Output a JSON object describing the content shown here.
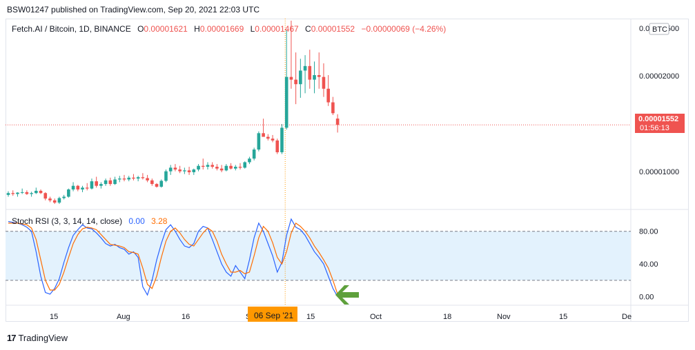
{
  "header": {
    "published_line": "BSW01247 published on TradingView.com, Sep 20, 2021 22:03 UTC"
  },
  "legend": {
    "symbol": "Fetch.AI / Bitcoin, 1D, BINANCE",
    "open_label": "O",
    "open": "0.00001621",
    "high_label": "H",
    "high": "0.00001669",
    "low_label": "L",
    "low": "0.00001467",
    "close_label": "C",
    "close": "0.00001552",
    "change": "−0.00000069 (−4.26%)"
  },
  "price_axis": {
    "currency_badge": "BTC",
    "ticks": [
      "0.00002500",
      "0.00002000",
      "0.00001000"
    ],
    "last_price": "0.00001552",
    "countdown": "01:56:13"
  },
  "rsi": {
    "title": "Stoch RSI (3, 3, 14, 14, close)",
    "k_value": "0.00",
    "d_value": "3.28",
    "ticks": [
      "80.00",
      "40.00",
      "0.00"
    ]
  },
  "time_axis": {
    "labels": [
      "15",
      "Aug",
      "16",
      "S",
      "15",
      "Oct",
      "18",
      "Nov",
      "15",
      "De"
    ],
    "crosshair_label": "06 Sep '21"
  },
  "footer": {
    "brand": "TradingView"
  },
  "colors": {
    "up": "#26a69a",
    "down": "#ef5350",
    "k_line": "#2962ff",
    "d_line": "#ff6d00",
    "band_fill": "#e3f2fd",
    "crosshair_label_bg": "#ff9800",
    "arrow": "#5ea03c"
  },
  "chart_data": [
    {
      "type": "candlestick",
      "title": "Fetch.AI / Bitcoin, 1D, BINANCE",
      "ylim": [
        6.5e-06,
        2.7e-05
      ],
      "x_start": "2021-07-08",
      "x_end": "2021-09-20",
      "candles": [
        [
          7.8e-06,
          8.2e-06,
          7.6e-06,
          8e-06
        ],
        [
          8e-06,
          8.3e-06,
          7.7e-06,
          7.9e-06
        ],
        [
          7.9e-06,
          8.1e-06,
          7.6e-06,
          8.05e-06
        ],
        [
          8.05e-06,
          8.5e-06,
          7.9e-06,
          8.1e-06
        ],
        [
          8.1e-06,
          8.3e-06,
          7.8e-06,
          7.9e-06
        ],
        [
          7.9e-06,
          8.15e-06,
          7.6e-06,
          8e-06
        ],
        [
          8e-06,
          8.6e-06,
          7.9e-06,
          8.25e-06
        ],
        [
          8.25e-06,
          8.4e-06,
          7.9e-06,
          8e-06
        ],
        [
          8e-06,
          8.1e-06,
          7.2e-06,
          7.4e-06
        ],
        [
          7.4e-06,
          7.6e-06,
          7e-06,
          7.2e-06
        ],
        [
          7.2e-06,
          7.4e-06,
          6.8e-06,
          6.95e-06
        ],
        [
          6.95e-06,
          7.6e-06,
          6.8e-06,
          7.45e-06
        ],
        [
          7.45e-06,
          7.8e-06,
          7.3e-06,
          7.6e-06
        ],
        [
          7.6e-06,
          8.5e-06,
          7.5e-06,
          8.4e-06
        ],
        [
          8.4e-06,
          9.2e-06,
          8.2e-06,
          8.8e-06
        ],
        [
          8.8e-06,
          8.9e-06,
          8.2e-06,
          8.4e-06
        ],
        [
          8.4e-06,
          8.8e-06,
          8.1e-06,
          8.6e-06
        ],
        [
          8.6e-06,
          9.1e-06,
          8.3e-06,
          8.5e-06
        ],
        [
          8.5e-06,
          9.6e-06,
          8.4e-06,
          9.3e-06
        ],
        [
          9.3e-06,
          9.8e-06,
          8.6e-06,
          8.8e-06
        ],
        [
          8.8e-06,
          9.2e-06,
          8.5e-06,
          9e-06
        ],
        [
          9e-06,
          9.6e-06,
          8.8e-06,
          9.4e-06
        ],
        [
          9.4e-06,
          9.7e-06,
          8.8e-06,
          9e-06
        ],
        [
          9e-06,
          9.8e-06,
          8.9e-06,
          9.5e-06
        ],
        [
          9.5e-06,
          9.9e-06,
          9.2e-06,
          9.6e-06
        ],
        [
          9.6e-06,
          1e-05,
          9.3e-06,
          9.5e-06
        ],
        [
          9.5e-06,
          9.9e-06,
          9.3e-06,
          9.7e-06
        ],
        [
          9.7e-06,
          1.01e-05,
          9.4e-06,
          9.6e-06
        ],
        [
          9.6e-06,
          9.9e-06,
          9.3e-06,
          9.75e-06
        ],
        [
          9.75e-06,
          1.02e-05,
          9.5e-06,
          9.65e-06
        ],
        [
          9.65e-06,
          1e-05,
          9.2e-06,
          9.4e-06
        ],
        [
          9.4e-06,
          9.6e-06,
          8.8e-06,
          9e-06
        ],
        [
          9e-06,
          9.1e-06,
          8.6e-06,
          8.7e-06
        ],
        [
          8.7e-06,
          9.5e-06,
          8.6e-06,
          9.35e-06
        ],
        [
          9.35e-06,
          1.06e-05,
          9.2e-06,
          1.04e-05
        ],
        [
          1.04e-05,
          1.11e-05,
          1e-05,
          1.08e-05
        ],
        [
          1.08e-05,
          1.12e-05,
          1.04e-05,
          1.06e-05
        ],
        [
          1.06e-05,
          1.1e-05,
          1.02e-05,
          1.04e-05
        ],
        [
          1.04e-05,
          1.08e-05,
          1.01e-05,
          1.05e-05
        ],
        [
          1.05e-05,
          1.09e-05,
          1e-05,
          1.03e-05
        ],
        [
          1.03e-05,
          1.07e-05,
          1e-05,
          1.06e-05
        ],
        [
          1.06e-05,
          1.12e-05,
          1.04e-05,
          1.1e-05
        ],
        [
          1.1e-05,
          1.18e-05,
          1.06e-05,
          1.09e-05
        ],
        [
          1.09e-05,
          1.14e-05,
          1.06e-05,
          1.11e-05
        ],
        [
          1.11e-05,
          1.14e-05,
          1.07e-05,
          1.09e-05
        ],
        [
          1.09e-05,
          1.12e-05,
          1.05e-05,
          1.07e-05
        ],
        [
          1.07e-05,
          1.11e-05,
          1.03e-05,
          1.05e-05
        ],
        [
          1.05e-05,
          1.12e-05,
          1.04e-05,
          1.1e-05
        ],
        [
          1.1e-05,
          1.13e-05,
          1.06e-05,
          1.07e-05
        ],
        [
          1.07e-05,
          1.11e-05,
          1.05e-05,
          1.09e-05
        ],
        [
          1.09e-05,
          1.13e-05,
          1.06e-05,
          1.08e-05
        ],
        [
          1.08e-05,
          1.15e-05,
          1.07e-05,
          1.14e-05
        ],
        [
          1.14e-05,
          1.2e-05,
          1.12e-05,
          1.18e-05
        ],
        [
          1.18e-05,
          1.3e-05,
          1.16e-05,
          1.28e-05
        ],
        [
          1.28e-05,
          1.48e-05,
          1.26e-05,
          1.46e-05
        ],
        [
          1.46e-05,
          1.62e-05,
          1.44e-05,
          1.42e-05
        ],
        [
          1.42e-05,
          1.45e-05,
          1.38e-05,
          1.4e-05
        ],
        [
          1.4e-05,
          1.44e-05,
          1.36e-05,
          1.38e-05
        ],
        [
          1.38e-05,
          1.4e-05,
          1.23e-05,
          1.25e-05
        ],
        [
          1.25e-05,
          1.56e-05,
          1.23e-05,
          1.52e-05
        ],
        [
          1.52e-05,
          2.6e-05,
          1.5e-05,
          2.08e-05
        ],
        [
          2.08e-05,
          2.7e-05,
          1.95e-05,
          2.05e-05
        ],
        [
          2.05e-05,
          2.35e-05,
          1.78e-05,
          2e-05
        ],
        [
          2e-05,
          2.28e-05,
          1.85e-05,
          2.15e-05
        ],
        [
          2.15e-05,
          2.32e-05,
          1.9e-05,
          2.2e-05
        ],
        [
          2.2e-05,
          2.38e-05,
          1.95e-05,
          2.05e-05
        ],
        [
          2.05e-05,
          2.25e-05,
          1.9e-05,
          2.1e-05
        ],
        [
          2.1e-05,
          2.35e-05,
          1.95e-05,
          2.08e-05
        ],
        [
          2.08e-05,
          2.23e-05,
          1.86e-05,
          1.95e-05
        ],
        [
          1.95e-05,
          2.1e-05,
          1.76e-05,
          1.8e-05
        ],
        [
          1.8e-05,
          1.86e-05,
          1.66e-05,
          1.68e-05
        ],
        [
          1.621e-05,
          1.669e-05,
          1.467e-05,
          1.552e-05
        ]
      ]
    },
    {
      "type": "line",
      "title": "Stoch RSI (3, 3, 14, 14, close)",
      "ylim": [
        -8,
        100
      ],
      "series": [
        {
          "name": "K",
          "values": [
            92,
            91,
            90,
            88,
            85,
            80,
            55,
            25,
            5,
            3,
            10,
            22,
            42,
            60,
            75,
            82,
            88,
            84,
            83,
            78,
            72,
            65,
            62,
            64,
            60,
            58,
            52,
            55,
            48,
            12,
            2,
            20,
            45,
            65,
            82,
            88,
            80,
            70,
            62,
            60,
            65,
            80,
            86,
            84,
            70,
            55,
            40,
            30,
            25,
            38,
            30,
            22,
            45,
            72,
            90,
            80,
            65,
            50,
            30,
            42,
            75,
            95,
            85,
            82,
            75,
            65,
            55,
            48,
            40,
            25,
            10,
            0
          ]
        },
        {
          "name": "D",
          "values": [
            90,
            90,
            90,
            89,
            88,
            84,
            70,
            45,
            20,
            8,
            8,
            15,
            30,
            48,
            65,
            76,
            83,
            85,
            84,
            82,
            76,
            70,
            64,
            63,
            62,
            60,
            55,
            54,
            52,
            35,
            15,
            10,
            25,
            48,
            68,
            80,
            84,
            78,
            70,
            64,
            62,
            70,
            78,
            84,
            80,
            68,
            52,
            40,
            30,
            30,
            32,
            28,
            30,
            50,
            72,
            86,
            80,
            66,
            48,
            40,
            55,
            78,
            90,
            86,
            80,
            72,
            62,
            54,
            45,
            35,
            20,
            3
          ]
        }
      ]
    }
  ]
}
